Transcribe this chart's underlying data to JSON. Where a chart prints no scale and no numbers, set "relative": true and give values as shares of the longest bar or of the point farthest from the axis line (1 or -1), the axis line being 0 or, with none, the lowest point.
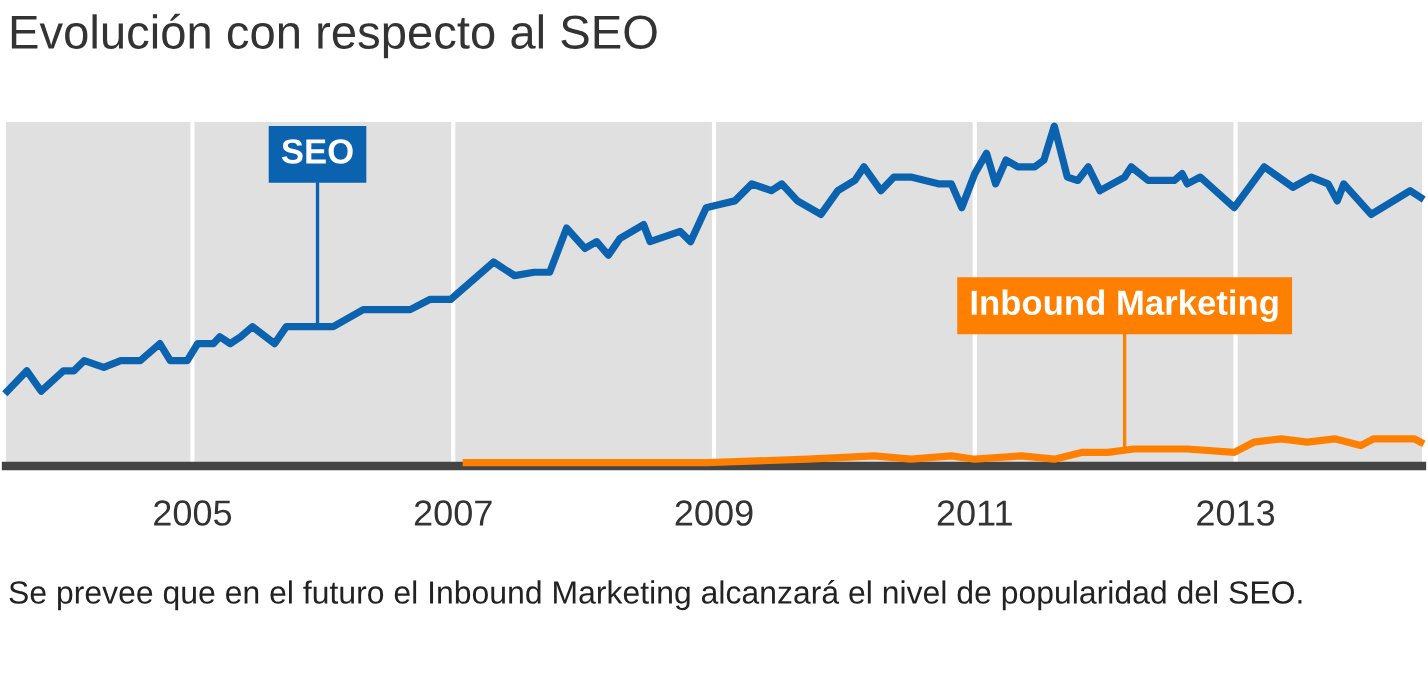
{
  "chart_data": {
    "type": "line",
    "title": "Evolución con respecto al SEO",
    "relative": true,
    "grid": "x",
    "legend": false,
    "xlim": [
      2003.57,
      2014.43
    ],
    "xticks": [
      2005,
      2007,
      2009,
      2011,
      2013
    ],
    "series": [
      {
        "name": "SEO",
        "color": "#0b63b0",
        "x": [
          2003.58,
          2003.73,
          2003.84,
          2004.01,
          2004.09,
          2004.17,
          2004.32,
          2004.45,
          2004.6,
          2004.75,
          2004.83,
          2004.96,
          2005.04,
          2005.16,
          2005.21,
          2005.29,
          2005.37,
          2005.46,
          2005.63,
          2005.72,
          2006.08,
          2006.31,
          2006.67,
          2006.82,
          2006.98,
          2007.31,
          2007.47,
          2007.62,
          2007.74,
          2007.87,
          2008.01,
          2008.1,
          2008.19,
          2008.28,
          2008.46,
          2008.51,
          2008.74,
          2008.82,
          2008.94,
          2009.05,
          2009.16,
          2009.29,
          2009.44,
          2009.52,
          2009.64,
          2009.82,
          2009.95,
          2010.08,
          2010.15,
          2010.28,
          2010.38,
          2010.51,
          2010.72,
          2010.82,
          2010.9,
          2011.0,
          2011.09,
          2011.16,
          2011.24,
          2011.33,
          2011.46,
          2011.53,
          2011.61,
          2011.71,
          2011.79,
          2011.87,
          2011.96,
          2012.15,
          2012.2,
          2012.33,
          2012.53,
          2012.59,
          2012.63,
          2012.73,
          2012.99,
          2013.22,
          2013.44,
          2013.58,
          2013.71,
          2013.78,
          2013.83,
          2014.04,
          2014.34,
          2014.42
        ],
        "values": [
          0.22,
          0.28,
          0.22,
          0.28,
          0.28,
          0.31,
          0.29,
          0.31,
          0.31,
          0.36,
          0.31,
          0.31,
          0.36,
          0.36,
          0.38,
          0.36,
          0.38,
          0.41,
          0.36,
          0.41,
          0.41,
          0.46,
          0.46,
          0.49,
          0.49,
          0.6,
          0.56,
          0.57,
          0.57,
          0.7,
          0.64,
          0.66,
          0.62,
          0.67,
          0.71,
          0.66,
          0.69,
          0.66,
          0.76,
          0.77,
          0.78,
          0.83,
          0.81,
          0.83,
          0.78,
          0.74,
          0.81,
          0.84,
          0.88,
          0.81,
          0.85,
          0.85,
          0.83,
          0.83,
          0.76,
          0.86,
          0.92,
          0.83,
          0.9,
          0.88,
          0.88,
          0.9,
          1,
          0.85,
          0.84,
          0.88,
          0.81,
          0.85,
          0.88,
          0.84,
          0.84,
          0.86,
          0.83,
          0.85,
          0.76,
          0.88,
          0.82,
          0.85,
          0.83,
          0.78,
          0.83,
          0.74,
          0.81,
          0.79
        ]
      },
      {
        "name": "Inbound Marketing",
        "color": "#ff8000",
        "x": [
          2007.1,
          2008.13,
          2008.95,
          2009.72,
          2010.23,
          2010.51,
          2010.82,
          2011.0,
          2011.36,
          2011.61,
          2011.82,
          2012.02,
          2012.22,
          2012.63,
          2012.99,
          2013.14,
          2013.35,
          2013.55,
          2013.76,
          2013.96,
          2014.06,
          2014.37,
          2014.42
        ],
        "values": [
          0.01,
          0.01,
          0.01,
          0.02,
          0.03,
          0.02,
          0.03,
          0.02,
          0.03,
          0.02,
          0.04,
          0.04,
          0.05,
          0.05,
          0.04,
          0.07,
          0.08,
          0.07,
          0.08,
          0.06,
          0.08,
          0.08,
          0.07
        ]
      }
    ],
    "annotations": [
      "Se prevee que en el futuro el Inbound Marketing alcanzará el nivel de popularidad del SEO."
    ]
  }
}
